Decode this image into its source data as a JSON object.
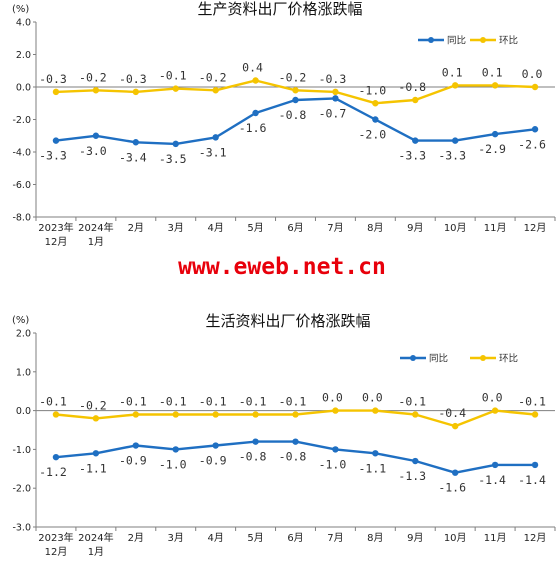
{
  "watermark": "www.eweb.net.cn",
  "colors": {
    "yoy": "#1f6fc2",
    "mom": "#f5c400",
    "axis": "#7f7f7f"
  },
  "chart_data": [
    {
      "type": "line",
      "title": "生产资料出厂价格涨跌幅",
      "unit": "(%)",
      "categories": [
        "2023年|12月",
        "2024年|1月",
        "2月",
        "3月",
        "4月",
        "5月",
        "6月",
        "7月",
        "8月",
        "9月",
        "10月",
        "11月",
        "12月"
      ],
      "ylim": [
        -8.0,
        4.0
      ],
      "yticks": [
        "4.0",
        "2.0",
        "0.0",
        "-2.0",
        "-4.0",
        "-6.0",
        "-8.0"
      ],
      "ytick_values": [
        4,
        2,
        0,
        -2,
        -4,
        -6,
        -8
      ],
      "legend": "top-right",
      "series": [
        {
          "name": "同比",
          "color": "#1f6fc2",
          "values": [
            -3.3,
            -3.0,
            -3.4,
            -3.5,
            -3.1,
            -1.6,
            -0.8,
            -0.7,
            -2.0,
            -3.3,
            -3.3,
            -2.9,
            -2.6
          ],
          "labels": [
            "-3.3",
            "-3.0",
            "-3.4",
            "-3.5",
            "-3.1",
            "-1.6",
            "-0.8",
            "-0.7",
            "-2.0",
            "-3.3",
            "-3.3",
            "-2.9",
            "-2.6"
          ]
        },
        {
          "name": "环比",
          "color": "#f5c400",
          "values": [
            -0.3,
            -0.2,
            -0.3,
            -0.1,
            -0.2,
            0.4,
            -0.2,
            -0.3,
            -1.0,
            -0.8,
            0.1,
            0.1,
            0.0
          ],
          "labels": [
            "-0.3",
            "-0.2",
            "-0.3",
            "-0.1",
            "-0.2",
            "0.4",
            "-0.2",
            "-0.3",
            "-1.0",
            "-0.8",
            "0.1",
            "0.1",
            "0.0"
          ]
        }
      ]
    },
    {
      "type": "line",
      "title": "生活资料出厂价格涨跌幅",
      "unit": "(%)",
      "categories": [
        "2023年|12月",
        "2024年|1月",
        "2月",
        "3月",
        "4月",
        "5月",
        "6月",
        "7月",
        "8月",
        "9月",
        "10月",
        "11月",
        "12月"
      ],
      "ylim": [
        -3.0,
        2.0
      ],
      "yticks": [
        "2.0",
        "1.0",
        "0.0",
        "-1.0",
        "-2.0",
        "-3.0"
      ],
      "ytick_values": [
        2,
        1,
        0,
        -1,
        -2,
        -3
      ],
      "legend": "top-right",
      "series": [
        {
          "name": "同比",
          "color": "#1f6fc2",
          "values": [
            -1.2,
            -1.1,
            -0.9,
            -1.0,
            -0.9,
            -0.8,
            -0.8,
            -1.0,
            -1.1,
            -1.3,
            -1.6,
            -1.4,
            -1.4
          ],
          "labels": [
            "-1.2",
            "-1.1",
            "-0.9",
            "-1.0",
            "-0.9",
            "-0.8",
            "-0.8",
            "-1.0",
            "-1.1",
            "-1.3",
            "-1.6",
            "-1.4",
            "-1.4"
          ]
        },
        {
          "name": "环比",
          "color": "#f5c400",
          "values": [
            -0.1,
            -0.2,
            -0.1,
            -0.1,
            -0.1,
            -0.1,
            -0.1,
            0.0,
            0.0,
            -0.1,
            -0.4,
            0.0,
            -0.1
          ],
          "labels": [
            "-0.1",
            "-0.2",
            "-0.1",
            "-0.1",
            "-0.1",
            "-0.1",
            "-0.1",
            "0.0",
            "0.0",
            "-0.1",
            "-0.4",
            "0.0",
            "-0.1"
          ]
        }
      ]
    }
  ]
}
